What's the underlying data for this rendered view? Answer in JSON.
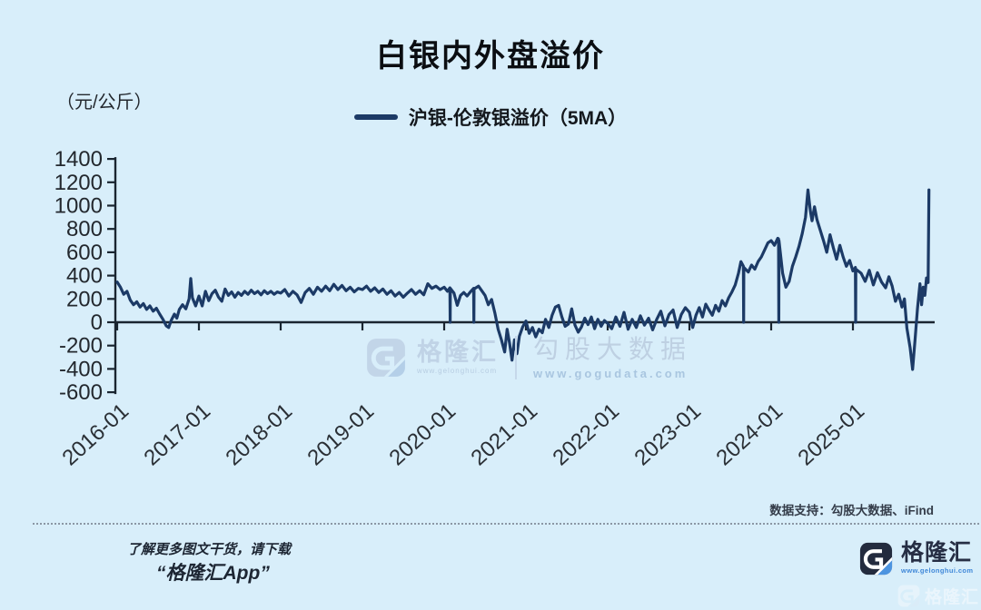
{
  "title": "白银内外盘溢价",
  "unit_label": "（元/公斤）",
  "legend": {
    "label": "沪银-伦敦银溢价（5MA）"
  },
  "data_support": "数据支持：勾股大数据、iFind",
  "watermark_center": {
    "brand": "格隆汇",
    "brand_url": "www.gelonghui.com",
    "product": "勾股大数据",
    "product_url": "www.gogudata.com"
  },
  "footer": {
    "line1": "了解更多图文干货，请下载",
    "line2": "“格隆汇App”",
    "logo_text": "格隆汇",
    "logo_url": "www.gelonghui.com"
  },
  "corner_watermark": {
    "text": "格隆汇"
  },
  "colors": {
    "background": "#d8eefa",
    "line": "#1c3a66",
    "axis": "#1a2530",
    "tick_text": "#23282e",
    "logo_dark": "#232b3e",
    "logo_blue": "#4d94e0"
  },
  "chart_data": {
    "type": "line",
    "title": "白银内外盘溢价",
    "ylabel": "元/公斤",
    "series_name": "沪银-伦敦银溢价（5MA）",
    "legend_position": "top-center",
    "grid": false,
    "ylim": [
      -600,
      1400
    ],
    "yticks": [
      1400,
      1200,
      1000,
      800,
      600,
      400,
      200,
      0,
      -200,
      -400,
      -600
    ],
    "xticks": [
      "2016-01",
      "2017-01",
      "2018-01",
      "2019-01",
      "2020-01",
      "2021-01",
      "2022-01",
      "2023-01",
      "2024-01",
      "2025-01"
    ],
    "xlim": [
      2016.0,
      2026.0
    ],
    "x_format": "decimal-year",
    "points": [
      [
        2016.0,
        345
      ],
      [
        2016.04,
        300
      ],
      [
        2016.08,
        240
      ],
      [
        2016.12,
        265
      ],
      [
        2016.16,
        190
      ],
      [
        2016.2,
        150
      ],
      [
        2016.24,
        175
      ],
      [
        2016.28,
        130
      ],
      [
        2016.32,
        160
      ],
      [
        2016.36,
        110
      ],
      [
        2016.4,
        140
      ],
      [
        2016.44,
        95
      ],
      [
        2016.48,
        120
      ],
      [
        2016.52,
        70
      ],
      [
        2016.56,
        25
      ],
      [
        2016.6,
        -30
      ],
      [
        2016.63,
        -45
      ],
      [
        2016.66,
        15
      ],
      [
        2016.7,
        70
      ],
      [
        2016.73,
        35
      ],
      [
        2016.76,
        110
      ],
      [
        2016.8,
        150
      ],
      [
        2016.84,
        115
      ],
      [
        2016.88,
        200
      ],
      [
        2016.9,
        375
      ],
      [
        2016.92,
        210
      ],
      [
        2016.96,
        140
      ],
      [
        2017.0,
        225
      ],
      [
        2017.04,
        140
      ],
      [
        2017.08,
        265
      ],
      [
        2017.12,
        185
      ],
      [
        2017.16,
        245
      ],
      [
        2017.2,
        275
      ],
      [
        2017.24,
        215
      ],
      [
        2017.28,
        180
      ],
      [
        2017.32,
        285
      ],
      [
        2017.36,
        230
      ],
      [
        2017.4,
        260
      ],
      [
        2017.44,
        215
      ],
      [
        2017.48,
        255
      ],
      [
        2017.52,
        230
      ],
      [
        2017.56,
        265
      ],
      [
        2017.6,
        240
      ],
      [
        2017.64,
        275
      ],
      [
        2017.68,
        245
      ],
      [
        2017.72,
        265
      ],
      [
        2017.76,
        235
      ],
      [
        2017.8,
        270
      ],
      [
        2017.84,
        245
      ],
      [
        2017.88,
        265
      ],
      [
        2017.92,
        240
      ],
      [
        2017.96,
        260
      ],
      [
        2018.0,
        250
      ],
      [
        2018.05,
        280
      ],
      [
        2018.1,
        225
      ],
      [
        2018.15,
        265
      ],
      [
        2018.2,
        235
      ],
      [
        2018.25,
        170
      ],
      [
        2018.3,
        255
      ],
      [
        2018.35,
        290
      ],
      [
        2018.4,
        240
      ],
      [
        2018.45,
        300
      ],
      [
        2018.5,
        265
      ],
      [
        2018.55,
        310
      ],
      [
        2018.6,
        270
      ],
      [
        2018.65,
        325
      ],
      [
        2018.7,
        280
      ],
      [
        2018.75,
        315
      ],
      [
        2018.8,
        270
      ],
      [
        2018.85,
        300
      ],
      [
        2018.9,
        260
      ],
      [
        2018.95,
        290
      ],
      [
        2019.0,
        280
      ],
      [
        2019.05,
        310
      ],
      [
        2019.1,
        265
      ],
      [
        2019.15,
        295
      ],
      [
        2019.2,
        255
      ],
      [
        2019.25,
        285
      ],
      [
        2019.3,
        240
      ],
      [
        2019.35,
        270
      ],
      [
        2019.4,
        225
      ],
      [
        2019.45,
        255
      ],
      [
        2019.5,
        215
      ],
      [
        2019.55,
        250
      ],
      [
        2019.6,
        280
      ],
      [
        2019.65,
        240
      ],
      [
        2019.7,
        270
      ],
      [
        2019.75,
        235
      ],
      [
        2019.8,
        330
      ],
      [
        2019.85,
        290
      ],
      [
        2019.9,
        310
      ],
      [
        2019.95,
        280
      ],
      [
        2020.0,
        300
      ],
      [
        2020.04,
        265
      ],
      [
        2020.07,
        295
      ],
      [
        2020.073,
        0
      ],
      [
        2020.076,
        290
      ],
      [
        2020.12,
        250
      ],
      [
        2020.16,
        145
      ],
      [
        2020.2,
        230
      ],
      [
        2020.24,
        255
      ],
      [
        2020.28,
        225
      ],
      [
        2020.32,
        260
      ],
      [
        2020.36,
        290
      ],
      [
        2020.363,
        0
      ],
      [
        2020.366,
        285
      ],
      [
        2020.42,
        310
      ],
      [
        2020.46,
        270
      ],
      [
        2020.5,
        230
      ],
      [
        2020.54,
        150
      ],
      [
        2020.58,
        195
      ],
      [
        2020.62,
        80
      ],
      [
        2020.66,
        -60
      ],
      [
        2020.7,
        -150
      ],
      [
        2020.74,
        -255
      ],
      [
        2020.77,
        -60
      ],
      [
        2020.8,
        -180
      ],
      [
        2020.83,
        -325
      ],
      [
        2020.86,
        -150
      ],
      [
        2020.89,
        -270
      ],
      [
        2020.92,
        -120
      ],
      [
        2020.96,
        -40
      ],
      [
        2021.0,
        10
      ],
      [
        2021.04,
        -95
      ],
      [
        2021.08,
        -45
      ],
      [
        2021.12,
        -125
      ],
      [
        2021.16,
        -60
      ],
      [
        2021.2,
        -90
      ],
      [
        2021.24,
        25
      ],
      [
        2021.28,
        -45
      ],
      [
        2021.32,
        60
      ],
      [
        2021.36,
        130
      ],
      [
        2021.4,
        145
      ],
      [
        2021.44,
        45
      ],
      [
        2021.48,
        -35
      ],
      [
        2021.52,
        -15
      ],
      [
        2021.56,
        115
      ],
      [
        2021.6,
        -25
      ],
      [
        2021.64,
        -85
      ],
      [
        2021.68,
        -40
      ],
      [
        2021.72,
        35
      ],
      [
        2021.76,
        -20
      ],
      [
        2021.8,
        45
      ],
      [
        2021.84,
        -55
      ],
      [
        2021.88,
        25
      ],
      [
        2021.92,
        -35
      ],
      [
        2021.96,
        15
      ],
      [
        2022.0,
        -10
      ],
      [
        2022.05,
        -55
      ],
      [
        2022.1,
        45
      ],
      [
        2022.15,
        -35
      ],
      [
        2022.2,
        85
      ],
      [
        2022.25,
        -60
      ],
      [
        2022.3,
        25
      ],
      [
        2022.35,
        -45
      ],
      [
        2022.4,
        55
      ],
      [
        2022.45,
        -25
      ],
      [
        2022.5,
        35
      ],
      [
        2022.55,
        -65
      ],
      [
        2022.6,
        25
      ],
      [
        2022.65,
        95
      ],
      [
        2022.7,
        -30
      ],
      [
        2022.75,
        65
      ],
      [
        2022.8,
        105
      ],
      [
        2022.85,
        -45
      ],
      [
        2022.9,
        65
      ],
      [
        2022.95,
        125
      ],
      [
        2023.0,
        85
      ],
      [
        2023.04,
        -45
      ],
      [
        2023.08,
        60
      ],
      [
        2023.12,
        125
      ],
      [
        2023.16,
        45
      ],
      [
        2023.2,
        155
      ],
      [
        2023.24,
        105
      ],
      [
        2023.28,
        60
      ],
      [
        2023.32,
        145
      ],
      [
        2023.36,
        95
      ],
      [
        2023.4,
        185
      ],
      [
        2023.44,
        140
      ],
      [
        2023.48,
        210
      ],
      [
        2023.52,
        260
      ],
      [
        2023.56,
        320
      ],
      [
        2023.6,
        420
      ],
      [
        2023.63,
        520
      ],
      [
        2023.66,
        480
      ],
      [
        2023.663,
        0
      ],
      [
        2023.666,
        470
      ],
      [
        2023.72,
        430
      ],
      [
        2023.76,
        490
      ],
      [
        2023.8,
        455
      ],
      [
        2023.84,
        520
      ],
      [
        2023.88,
        560
      ],
      [
        2023.92,
        620
      ],
      [
        2023.96,
        680
      ],
      [
        2024.0,
        700
      ],
      [
        2024.04,
        660
      ],
      [
        2024.08,
        720
      ],
      [
        2024.09,
        715
      ],
      [
        2024.093,
        0
      ],
      [
        2024.096,
        700
      ],
      [
        2024.14,
        420
      ],
      [
        2024.18,
        300
      ],
      [
        2024.22,
        350
      ],
      [
        2024.26,
        480
      ],
      [
        2024.3,
        560
      ],
      [
        2024.34,
        650
      ],
      [
        2024.38,
        760
      ],
      [
        2024.42,
        900
      ],
      [
        2024.45,
        1135
      ],
      [
        2024.48,
        950
      ],
      [
        2024.5,
        870
      ],
      [
        2024.53,
        990
      ],
      [
        2024.56,
        880
      ],
      [
        2024.6,
        790
      ],
      [
        2024.64,
        700
      ],
      [
        2024.68,
        600
      ],
      [
        2024.72,
        750
      ],
      [
        2024.76,
        640
      ],
      [
        2024.8,
        540
      ],
      [
        2024.84,
        660
      ],
      [
        2024.88,
        560
      ],
      [
        2024.92,
        480
      ],
      [
        2024.96,
        530
      ],
      [
        2025.0,
        440
      ],
      [
        2025.03,
        470
      ],
      [
        2025.033,
        0
      ],
      [
        2025.036,
        455
      ],
      [
        2025.1,
        420
      ],
      [
        2025.15,
        350
      ],
      [
        2025.2,
        445
      ],
      [
        2025.25,
        320
      ],
      [
        2025.3,
        425
      ],
      [
        2025.35,
        345
      ],
      [
        2025.4,
        295
      ],
      [
        2025.44,
        390
      ],
      [
        2025.48,
        310
      ],
      [
        2025.52,
        180
      ],
      [
        2025.56,
        240
      ],
      [
        2025.6,
        130
      ],
      [
        2025.63,
        200
      ],
      [
        2025.66,
        -50
      ],
      [
        2025.7,
        -220
      ],
      [
        2025.73,
        -405
      ],
      [
        2025.76,
        -150
      ],
      [
        2025.79,
        120
      ],
      [
        2025.82,
        330
      ],
      [
        2025.84,
        150
      ],
      [
        2025.86,
        300
      ],
      [
        2025.88,
        230
      ],
      [
        2025.9,
        380
      ],
      [
        2025.92,
        340
      ],
      [
        2025.93,
        1135
      ]
    ]
  }
}
